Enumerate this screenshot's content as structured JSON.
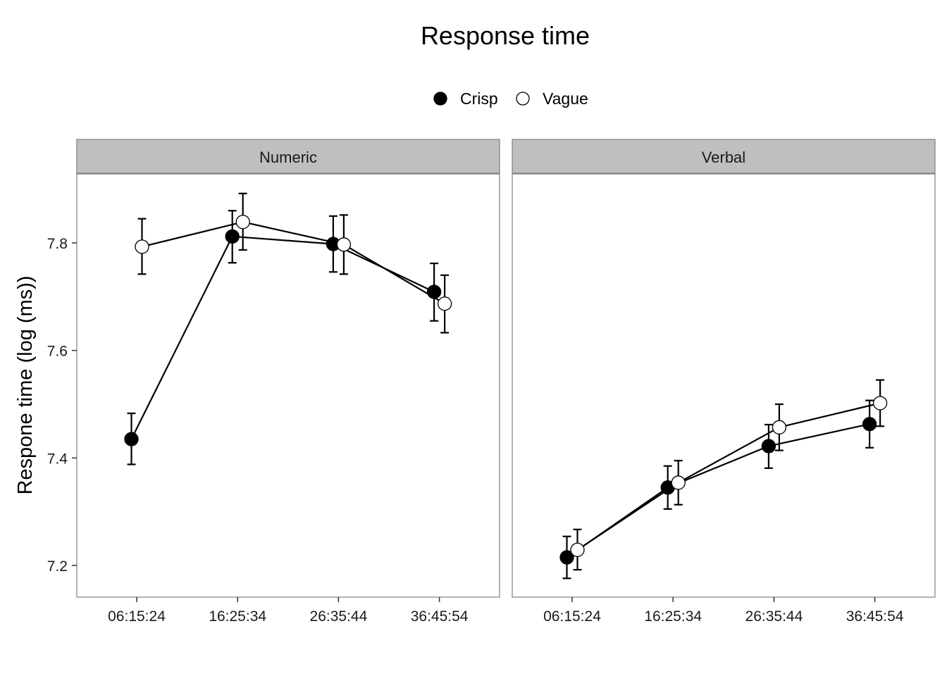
{
  "chart_data": {
    "type": "line",
    "title": "Response time",
    "ylabel": "Respone time (log (ms))",
    "xlabel": "",
    "legend_position": "top",
    "grid": false,
    "categories": [
      "06:15:24",
      "16:25:34",
      "26:35:44",
      "36:45:54"
    ],
    "yticks": [
      "7.2",
      "7.4",
      "7.6",
      "7.8"
    ],
    "ylim": [
      7.14,
      7.925
    ],
    "series_meta": [
      {
        "name": "Crisp",
        "fill": "#000000"
      },
      {
        "name": "Vague",
        "fill": "#ffffff"
      }
    ],
    "panels": [
      {
        "label": "Numeric",
        "series": [
          {
            "name": "Crisp",
            "values": [
              7.435,
              7.812,
              7.798,
              7.709
            ],
            "lower": [
              7.388,
              7.763,
              7.746,
              7.655
            ],
            "upper": [
              7.483,
              7.86,
              7.85,
              7.762
            ]
          },
          {
            "name": "Vague",
            "values": [
              7.793,
              7.839,
              7.797,
              7.687
            ],
            "lower": [
              7.742,
              7.787,
              7.742,
              7.633
            ],
            "upper": [
              7.845,
              7.892,
              7.852,
              7.74
            ]
          }
        ]
      },
      {
        "label": "Verbal",
        "series": [
          {
            "name": "Crisp",
            "values": [
              7.215,
              7.345,
              7.422,
              7.463
            ],
            "lower": [
              7.176,
              7.305,
              7.381,
              7.419
            ],
            "upper": [
              7.254,
              7.385,
              7.462,
              7.507
            ]
          },
          {
            "name": "Vague",
            "values": [
              7.229,
              7.354,
              7.457,
              7.502
            ],
            "lower": [
              7.192,
              7.313,
              7.414,
              7.459
            ],
            "upper": [
              7.267,
              7.395,
              7.5,
              7.545
            ]
          }
        ]
      }
    ]
  }
}
